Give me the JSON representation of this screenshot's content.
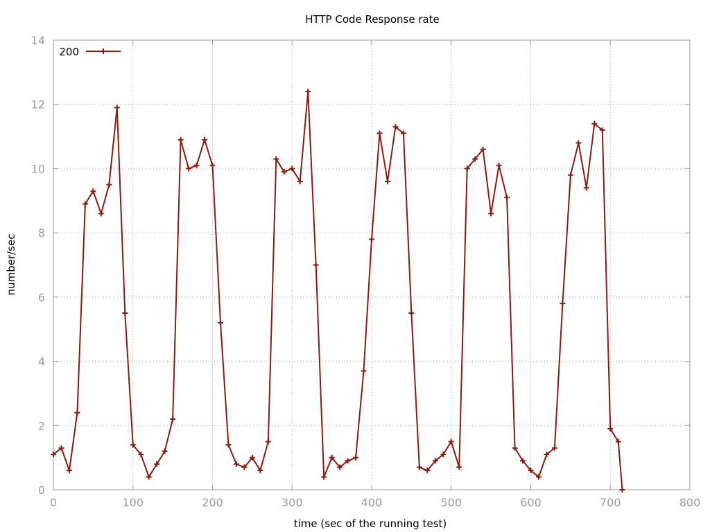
{
  "chart_data": {
    "type": "line",
    "title": "HTTP Code Response rate",
    "xlabel": "time (sec of the running test)",
    "ylabel": "number/sec",
    "xlim": [
      0,
      800
    ],
    "ylim": [
      0,
      14
    ],
    "x_ticks": [
      0,
      100,
      200,
      300,
      400,
      500,
      600,
      700,
      800
    ],
    "y_ticks": [
      0,
      2,
      4,
      6,
      8,
      10,
      12,
      14
    ],
    "grid": true,
    "legend_position": "top-left",
    "series": [
      {
        "name": "200",
        "color": "#8b1a0e",
        "marker": "plus",
        "points": [
          [
            0,
            1.1
          ],
          [
            10,
            1.3
          ],
          [
            20,
            0.6
          ],
          [
            30,
            2.4
          ],
          [
            40,
            8.9
          ],
          [
            50,
            9.3
          ],
          [
            60,
            8.6
          ],
          [
            70,
            9.5
          ],
          [
            80,
            11.9
          ],
          [
            90,
            5.5
          ],
          [
            100,
            1.4
          ],
          [
            110,
            1.1
          ],
          [
            120,
            0.4
          ],
          [
            130,
            0.8
          ],
          [
            140,
            1.2
          ],
          [
            150,
            2.2
          ],
          [
            160,
            10.9
          ],
          [
            170,
            10.0
          ],
          [
            180,
            10.1
          ],
          [
            190,
            10.9
          ],
          [
            200,
            10.1
          ],
          [
            210,
            5.2
          ],
          [
            220,
            1.4
          ],
          [
            230,
            0.8
          ],
          [
            240,
            0.7
          ],
          [
            250,
            1.0
          ],
          [
            260,
            0.6
          ],
          [
            270,
            1.5
          ],
          [
            280,
            10.3
          ],
          [
            290,
            9.9
          ],
          [
            300,
            10.0
          ],
          [
            310,
            9.6
          ],
          [
            320,
            12.4
          ],
          [
            330,
            7.0
          ],
          [
            340,
            0.4
          ],
          [
            350,
            1.0
          ],
          [
            360,
            0.7
          ],
          [
            370,
            0.9
          ],
          [
            380,
            1.0
          ],
          [
            390,
            3.7
          ],
          [
            400,
            7.8
          ],
          [
            410,
            11.1
          ],
          [
            420,
            9.6
          ],
          [
            430,
            11.3
          ],
          [
            440,
            11.1
          ],
          [
            450,
            5.5
          ],
          [
            460,
            0.7
          ],
          [
            470,
            0.6
          ],
          [
            480,
            0.9
          ],
          [
            490,
            1.1
          ],
          [
            500,
            1.5
          ],
          [
            510,
            0.7
          ],
          [
            520,
            10.0
          ],
          [
            530,
            10.3
          ],
          [
            540,
            10.6
          ],
          [
            550,
            8.6
          ],
          [
            560,
            10.1
          ],
          [
            570,
            9.1
          ],
          [
            580,
            1.3
          ],
          [
            590,
            0.9
          ],
          [
            600,
            0.6
          ],
          [
            610,
            0.4
          ],
          [
            620,
            1.1
          ],
          [
            630,
            1.3
          ],
          [
            640,
            5.8
          ],
          [
            650,
            9.8
          ],
          [
            660,
            10.8
          ],
          [
            670,
            9.4
          ],
          [
            680,
            11.4
          ],
          [
            690,
            11.2
          ],
          [
            700,
            1.9
          ],
          [
            710,
            1.5
          ],
          [
            715,
            0.0
          ]
        ]
      }
    ]
  }
}
